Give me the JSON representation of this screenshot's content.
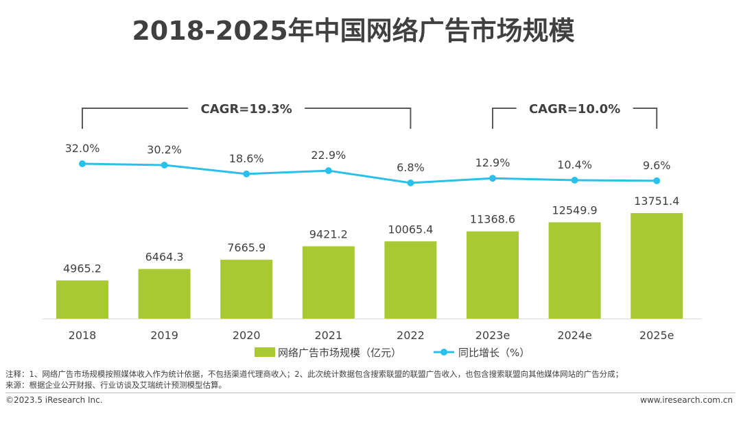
{
  "title": "2018-2025年中国网络广告市场规模",
  "chart_data": {
    "type": "bar+line",
    "categories": [
      "2018",
      "2019",
      "2020",
      "2021",
      "2022",
      "2023e",
      "2024e",
      "2025e"
    ],
    "series": [
      {
        "name": "网络广告市场规模（亿元）",
        "type": "bar",
        "color": "#a9c934",
        "values": [
          4965.2,
          6464.3,
          7665.9,
          9421.2,
          10065.4,
          11368.6,
          12549.9,
          13751.4
        ],
        "labels": [
          "4965.2",
          "6464.3",
          "7665.9",
          "9421.2",
          "10065.4",
          "11368.6",
          "12549.9",
          "13751.4"
        ]
      },
      {
        "name": "同比增长（%）",
        "type": "line",
        "color": "#29c0ec",
        "values": [
          32.0,
          30.2,
          18.6,
          22.9,
          6.8,
          12.9,
          10.4,
          9.6
        ],
        "labels": [
          "32.0%",
          "30.2%",
          "18.6%",
          "22.9%",
          "6.8%",
          "12.9%",
          "10.4%",
          "9.6%"
        ]
      }
    ],
    "annotations": [
      {
        "text": "CAGR=19.3%",
        "from": "2018",
        "to": "2022"
      },
      {
        "text": "CAGR=10.0%",
        "from": "2023e",
        "to": "2025e"
      }
    ],
    "legend_position": "bottom-center"
  },
  "note": "注释：1、网络广告市场规模按照媒体收入作为统计依据，不包括渠道代理商收入；2、此次统计数据包含搜索联盟的联盟广告收入，也包含搜索联盟向其他媒体网站的广告分成；",
  "source": "来源：根据企业公开财报、行业访谈及艾瑞统计预测模型估算。",
  "footer": {
    "copyright": "©2023.5 iResearch Inc.",
    "website": "www.iresearch.com.cn"
  }
}
